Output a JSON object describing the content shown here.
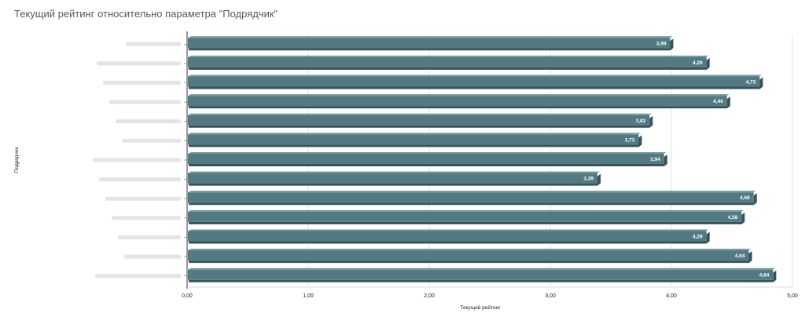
{
  "title": "Текущий рейтинг относительно параметра \"Подрядчик\"",
  "chart_data": {
    "type": "bar",
    "orientation": "horizontal",
    "title": "Текущий рейтинг относительно параметра \"Подрядчик\"",
    "xlabel": "Текущий рейтинг",
    "ylabel": "Подрядчик",
    "xlim": [
      0,
      5
    ],
    "x_ticks": [
      "0,00",
      "1,00",
      "2,00",
      "3,00",
      "4,00",
      "5,00"
    ],
    "categories": [
      "",
      "",
      "",
      "",
      "",
      "",
      "",
      "",
      "",
      "",
      "",
      "",
      ""
    ],
    "values": [
      3.99,
      4.29,
      4.73,
      4.46,
      3.82,
      3.73,
      3.94,
      3.39,
      4.68,
      4.58,
      4.29,
      4.64,
      4.84
    ],
    "value_labels": [
      "3,99",
      "4,29",
      "4,73",
      "4,46",
      "3,82",
      "3,73",
      "3,94",
      "3,39",
      "4,68",
      "4,58",
      "4,29",
      "4,64",
      "4,84"
    ],
    "grid": true,
    "colors": {
      "bar": "#537a82",
      "bar_shadow": "#35535a",
      "bar_top": "#6f949b",
      "grid": "#e3e3e3",
      "axis": "#333333"
    }
  }
}
